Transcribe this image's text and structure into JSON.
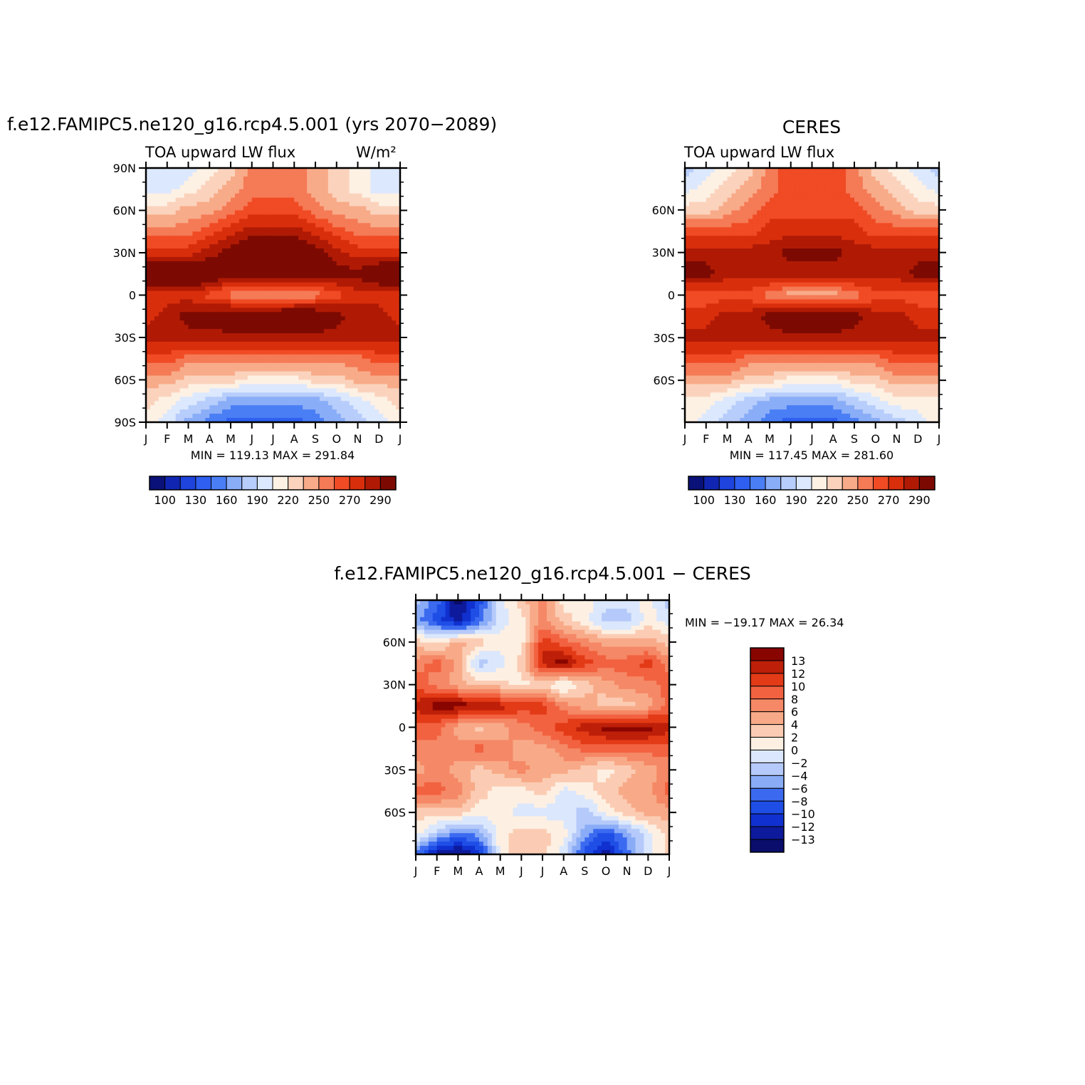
{
  "chart_data": [
    {
      "type": "heatmap",
      "id": "model",
      "title": "f.e12.FAMIPC5.ne120_g16.rcp4.5.001 (yrs 2070−2089)",
      "left_string": "TOA upward LW flux",
      "units": "W/m²",
      "x_ticks": [
        "J",
        "F",
        "M",
        "A",
        "M",
        "J",
        "J",
        "A",
        "S",
        "O",
        "N",
        "D",
        "J"
      ],
      "y_ticks": [
        {
          "value": 90,
          "label": "90N"
        },
        {
          "value": 60,
          "label": "60N"
        },
        {
          "value": 30,
          "label": "30N"
        },
        {
          "value": 0,
          "label": "0"
        },
        {
          "value": -30,
          "label": "30S"
        },
        {
          "value": -60,
          "label": "60S"
        },
        {
          "value": -90,
          "label": "90S"
        }
      ],
      "ylim": [
        -90,
        90
      ],
      "stats": "MIN = 119.13  MAX = 291.84",
      "colorbar_labels": [
        "100",
        "130",
        "160",
        "190",
        "220",
        "250",
        "270",
        "290"
      ],
      "colorbar_orientation": "horizontal",
      "bands": [
        {
          "lat": 90,
          "values": [
            7,
            7,
            7,
            8,
            9,
            11,
            11,
            11,
            10,
            9,
            8,
            7,
            7
          ]
        },
        {
          "lat": 75,
          "values": [
            7,
            7,
            8,
            9,
            10,
            11,
            11,
            11,
            10,
            9,
            8,
            7,
            7
          ]
        },
        {
          "lat": 60,
          "values": [
            9,
            9,
            10,
            10,
            11,
            12,
            12,
            12,
            11,
            10,
            10,
            9,
            9
          ]
        },
        {
          "lat": 45,
          "values": [
            11,
            11,
            11,
            12,
            13,
            14,
            14,
            14,
            13,
            12,
            11,
            11,
            11
          ]
        },
        {
          "lat": 30,
          "values": [
            13,
            13,
            13,
            14,
            15,
            16,
            16,
            16,
            15,
            14,
            13,
            13,
            13
          ]
        },
        {
          "lat": 15,
          "values": [
            16,
            17,
            17,
            16,
            15,
            15,
            15,
            15,
            15,
            15,
            15,
            16,
            16
          ]
        },
        {
          "lat": 0,
          "values": [
            13,
            13,
            13,
            12,
            11,
            10,
            10,
            10,
            11,
            12,
            13,
            13,
            13
          ]
        },
        {
          "lat": -15,
          "values": [
            13,
            14,
            15,
            15,
            16,
            16,
            16,
            17,
            16,
            15,
            14,
            14,
            13
          ]
        },
        {
          "lat": -30,
          "values": [
            14,
            14,
            14,
            14,
            14,
            14,
            14,
            14,
            14,
            14,
            14,
            14,
            14
          ]
        },
        {
          "lat": -45,
          "values": [
            12,
            12,
            11,
            11,
            11,
            11,
            11,
            11,
            11,
            11,
            11,
            12,
            12
          ]
        },
        {
          "lat": -60,
          "values": [
            10,
            10,
            9,
            9,
            9,
            8,
            8,
            8,
            9,
            9,
            10,
            10,
            10
          ]
        },
        {
          "lat": -75,
          "values": [
            9,
            8,
            7,
            6,
            5,
            5,
            5,
            5,
            5,
            6,
            7,
            8,
            9
          ]
        },
        {
          "lat": -90,
          "values": [
            8,
            7,
            5,
            4,
            3,
            3,
            3,
            3,
            4,
            5,
            6,
            7,
            8
          ]
        }
      ]
    },
    {
      "type": "heatmap",
      "id": "ceres",
      "title": "CERES",
      "left_string": "TOA upward LW flux",
      "units": "",
      "x_ticks": [
        "J",
        "F",
        "M",
        "A",
        "M",
        "J",
        "J",
        "A",
        "S",
        "O",
        "N",
        "D",
        "J"
      ],
      "y_ticks": [
        {
          "value": 60,
          "label": "60N"
        },
        {
          "value": 30,
          "label": "30N"
        },
        {
          "value": 0,
          "label": "0"
        },
        {
          "value": -30,
          "label": "30S"
        },
        {
          "value": -60,
          "label": "60S"
        }
      ],
      "ylim": [
        -89.5,
        89.5
      ],
      "stats": "MIN = 117.45  MAX = 281.60",
      "colorbar_labels": [
        "100",
        "130",
        "160",
        "190",
        "220",
        "250",
        "270",
        "290"
      ],
      "colorbar_orientation": "horizontal",
      "bands": [
        {
          "lat": 89.5,
          "values": [
            6,
            7,
            8,
            9,
            11,
            12,
            12,
            12,
            11,
            9,
            8,
            7,
            6
          ]
        },
        {
          "lat": 75,
          "values": [
            7,
            8,
            9,
            10,
            11,
            12,
            12,
            12,
            11,
            10,
            9,
            8,
            7
          ]
        },
        {
          "lat": 60,
          "values": [
            9,
            9,
            10,
            11,
            12,
            12,
            12,
            12,
            12,
            11,
            10,
            9,
            9
          ]
        },
        {
          "lat": 45,
          "values": [
            12,
            12,
            12,
            12,
            13,
            13,
            13,
            13,
            13,
            12,
            12,
            12,
            12
          ]
        },
        {
          "lat": 30,
          "values": [
            14,
            14,
            14,
            14,
            14,
            15,
            15,
            15,
            14,
            14,
            14,
            14,
            14
          ]
        },
        {
          "lat": 15,
          "values": [
            15,
            15,
            14,
            14,
            14,
            14,
            14,
            14,
            14,
            14,
            14,
            15,
            15
          ]
        },
        {
          "lat": 0,
          "values": [
            12,
            12,
            12,
            12,
            11,
            10,
            10,
            10,
            11,
            12,
            12,
            12,
            12
          ]
        },
        {
          "lat": -15,
          "values": [
            13,
            13,
            14,
            14,
            15,
            16,
            16,
            16,
            15,
            14,
            14,
            13,
            13
          ]
        },
        {
          "lat": -30,
          "values": [
            14,
            14,
            14,
            14,
            14,
            14,
            14,
            14,
            14,
            14,
            14,
            14,
            14
          ]
        },
        {
          "lat": -45,
          "values": [
            12,
            12,
            12,
            11,
            11,
            11,
            11,
            11,
            11,
            11,
            12,
            12,
            12
          ]
        },
        {
          "lat": -60,
          "values": [
            10,
            10,
            10,
            9,
            9,
            8,
            8,
            8,
            9,
            9,
            10,
            10,
            10
          ]
        },
        {
          "lat": -75,
          "values": [
            8,
            8,
            7,
            6,
            5,
            5,
            5,
            5,
            6,
            7,
            8,
            8,
            8
          ]
        },
        {
          "lat": -89.5,
          "values": [
            8,
            7,
            6,
            5,
            4,
            3,
            3,
            3,
            4,
            5,
            6,
            7,
            8
          ]
        }
      ]
    },
    {
      "type": "heatmap",
      "id": "diff",
      "title": "f.e12.FAMIPC5.ne120_g16.rcp4.5.001  −  CERES",
      "left_string": "",
      "units": "",
      "x_ticks": [
        "J",
        "F",
        "M",
        "A",
        "M",
        "J",
        "J",
        "A",
        "S",
        "O",
        "N",
        "D",
        "J"
      ],
      "y_ticks": [
        {
          "value": 60,
          "label": "60N"
        },
        {
          "value": 30,
          "label": "30N"
        },
        {
          "value": 0,
          "label": "0"
        },
        {
          "value": -30,
          "label": "30S"
        },
        {
          "value": -60,
          "label": "60S"
        }
      ],
      "ylim": [
        -89.5,
        89.5
      ],
      "stats": "MIN = −19.17  MAX =   26.34",
      "colorbar_labels": [
        "13",
        "12",
        "10",
        "8",
        "6",
        "4",
        "2",
        "0",
        "−2",
        "−4",
        "−6",
        "−8",
        "−10",
        "−12",
        "−13"
      ],
      "colorbar_orientation": "vertical",
      "bands": [
        {
          "lat": 89.5,
          "values": [
            6,
            4,
            0,
            3,
            7,
            9,
            11,
            8,
            8,
            7,
            7,
            8,
            6
          ]
        },
        {
          "lat": 75,
          "values": [
            5,
            3,
            1,
            4,
            7,
            8,
            11,
            9,
            8,
            6,
            6,
            8,
            7
          ]
        },
        {
          "lat": 60,
          "values": [
            9,
            8,
            10,
            9,
            8,
            8,
            13,
            12,
            11,
            10,
            10,
            10,
            9
          ]
        },
        {
          "lat": 45,
          "values": [
            11,
            12,
            10,
            6,
            7,
            9,
            14,
            15,
            13,
            12,
            12,
            13,
            11
          ]
        },
        {
          "lat": 30,
          "values": [
            12,
            11,
            10,
            9,
            9,
            8,
            9,
            7,
            9,
            10,
            11,
            11,
            12
          ]
        },
        {
          "lat": 15,
          "values": [
            14,
            15,
            15,
            15,
            14,
            13,
            13,
            11,
            10,
            9,
            9,
            10,
            12
          ]
        },
        {
          "lat": 0,
          "values": [
            12,
            12,
            10,
            9,
            10,
            11,
            12,
            13,
            14,
            15,
            15,
            15,
            14
          ]
        },
        {
          "lat": -15,
          "values": [
            11,
            11,
            11,
            12,
            11,
            10,
            10,
            11,
            12,
            12,
            12,
            12,
            12
          ]
        },
        {
          "lat": -30,
          "values": [
            10,
            11,
            10,
            9,
            10,
            11,
            10,
            10,
            9,
            8,
            9,
            10,
            11
          ]
        },
        {
          "lat": -45,
          "values": [
            12,
            12,
            11,
            9,
            8,
            8,
            9,
            7,
            8,
            9,
            10,
            10,
            12
          ]
        },
        {
          "lat": -60,
          "values": [
            9,
            9,
            9,
            8,
            8,
            7,
            7,
            7,
            6,
            8,
            9,
            10,
            10
          ]
        },
        {
          "lat": -75,
          "values": [
            8,
            6,
            4,
            5,
            8,
            9,
            9,
            8,
            5,
            3,
            5,
            7,
            9
          ]
        },
        {
          "lat": -89.5,
          "values": [
            4,
            1,
            0,
            2,
            8,
            9,
            9,
            7,
            3,
            1,
            4,
            7,
            9
          ]
        }
      ]
    }
  ],
  "colors": {
    "main_palette": [
      "#0a1178",
      "#1026b3",
      "#1e44dd",
      "#2e5ff0",
      "#4a7ef5",
      "#8aadf8",
      "#b7cdfb",
      "#dce8fd",
      "#fdf1e4",
      "#fbd3bd",
      "#f8ab89",
      "#f57a56",
      "#f04b24",
      "#d92e0c",
      "#b01a05",
      "#7d0a02"
    ],
    "diff_palette": [
      "#0a0d6b",
      "#0d1a9c",
      "#1030cf",
      "#1e4ee6",
      "#3b6af0",
      "#8aacf7",
      "#b5cafa",
      "#dbe7fc",
      "#fdf0e3",
      "#fbccb3",
      "#f8aa88",
      "#f58866",
      "#f26240",
      "#e33a17",
      "#bd1f08",
      "#880500"
    ]
  }
}
